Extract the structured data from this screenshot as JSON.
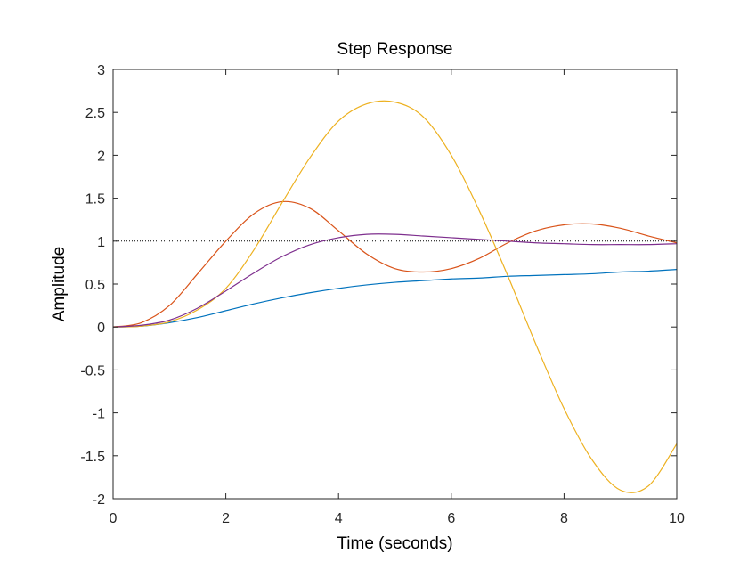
{
  "chart_data": {
    "type": "line",
    "title": "Step Response",
    "xlabel": "Time (seconds)",
    "ylabel": "Amplitude",
    "xlim": [
      0,
      10
    ],
    "ylim": [
      -2,
      3
    ],
    "xticks": [
      0,
      2,
      4,
      6,
      8,
      10
    ],
    "yticks": [
      -2,
      -1.5,
      -1,
      -0.5,
      0,
      0.5,
      1,
      1.5,
      2,
      2.5,
      3
    ],
    "xtick_labels": [
      "0",
      "2",
      "4",
      "6",
      "8",
      "10"
    ],
    "ytick_labels": [
      "-2",
      "-1.5",
      "-1",
      "-0.5",
      "0",
      "0.5",
      "1",
      "1.5",
      "2",
      "2.5",
      "3"
    ],
    "reference_line": {
      "y": 1,
      "style": "dotted",
      "color": "#000000"
    },
    "series": [
      {
        "name": "blue",
        "color": "#0072BD",
        "x": [
          0,
          0.5,
          1,
          1.5,
          2,
          2.5,
          3,
          3.5,
          4,
          4.5,
          5,
          5.5,
          6,
          6.5,
          7,
          7.5,
          8,
          8.5,
          9,
          9.5,
          10
        ],
        "y": [
          0,
          0.01,
          0.05,
          0.11,
          0.19,
          0.27,
          0.34,
          0.4,
          0.45,
          0.49,
          0.52,
          0.54,
          0.56,
          0.57,
          0.59,
          0.6,
          0.61,
          0.62,
          0.64,
          0.65,
          0.67
        ]
      },
      {
        "name": "orange",
        "color": "#D95319",
        "x": [
          0,
          0.5,
          1,
          1.5,
          2,
          2.5,
          3,
          3.5,
          4,
          4.5,
          5,
          5.5,
          6,
          6.5,
          7,
          7.5,
          8,
          8.5,
          9,
          9.5,
          10
        ],
        "y": [
          0,
          0.05,
          0.25,
          0.62,
          1.0,
          1.32,
          1.46,
          1.38,
          1.12,
          0.85,
          0.68,
          0.64,
          0.68,
          0.8,
          0.98,
          1.12,
          1.19,
          1.2,
          1.15,
          1.06,
          0.98
        ]
      },
      {
        "name": "yellow",
        "color": "#EDB120",
        "x": [
          0,
          0.5,
          1,
          1.5,
          2,
          2.5,
          3,
          3.5,
          4,
          4.5,
          5,
          5.5,
          6,
          6.5,
          7,
          7.5,
          8,
          8.5,
          9,
          9.5,
          10
        ],
        "y": [
          0,
          0.01,
          0.06,
          0.2,
          0.45,
          0.9,
          1.45,
          1.98,
          2.4,
          2.6,
          2.62,
          2.45,
          2.0,
          1.35,
          0.6,
          -0.2,
          -0.95,
          -1.55,
          -1.9,
          -1.85,
          -1.36
        ]
      },
      {
        "name": "purple",
        "color": "#7E2F8E",
        "x": [
          0,
          0.5,
          1,
          1.5,
          2,
          2.5,
          3,
          3.5,
          4,
          4.5,
          5,
          5.5,
          6,
          6.5,
          7,
          7.5,
          8,
          8.5,
          9,
          9.5,
          10
        ],
        "y": [
          0,
          0.02,
          0.08,
          0.22,
          0.42,
          0.63,
          0.82,
          0.96,
          1.04,
          1.08,
          1.08,
          1.06,
          1.04,
          1.02,
          1.0,
          0.98,
          0.97,
          0.96,
          0.96,
          0.96,
          0.97
        ]
      }
    ]
  }
}
